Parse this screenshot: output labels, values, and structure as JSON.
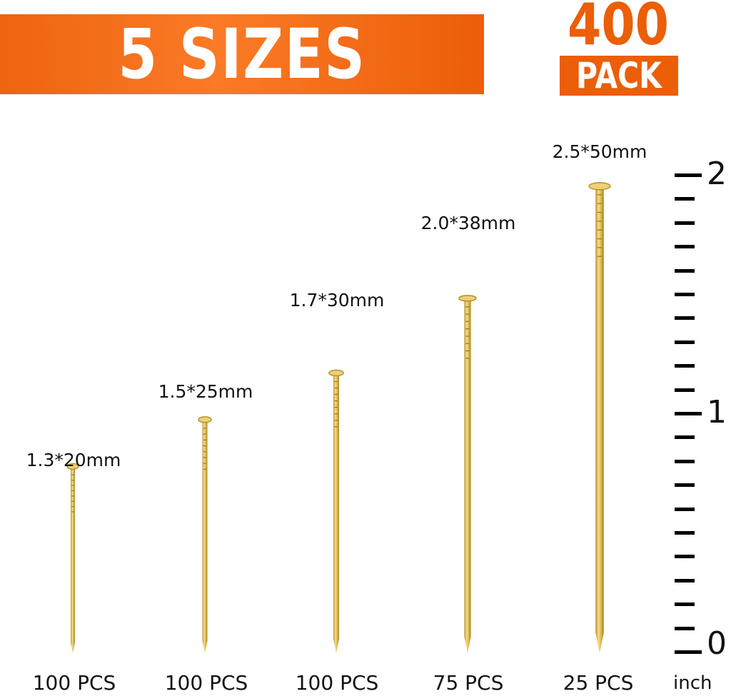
{
  "banner": {
    "title": "5 SIZES",
    "pack_count": "400",
    "pack_label": "PACK",
    "accent": "#ec5e08"
  },
  "nails": [
    {
      "size": "1.3*20mm",
      "quantity": "100 PCS",
      "diameter_mm": 1.3,
      "length_mm": 20
    },
    {
      "size": "1.5*25mm",
      "quantity": "100 PCS",
      "diameter_mm": 1.5,
      "length_mm": 25
    },
    {
      "size": "1.7*30mm",
      "quantity": "100 PCS",
      "diameter_mm": 1.7,
      "length_mm": 30
    },
    {
      "size": "2.0*38mm",
      "quantity": "75 PCS",
      "diameter_mm": 2.0,
      "length_mm": 38
    },
    {
      "size": "2.5*50mm",
      "quantity": "25 PCS",
      "diameter_mm": 2.5,
      "length_mm": 50
    }
  ],
  "ruler": {
    "labels": [
      "2",
      "1",
      "0"
    ],
    "unit": "inch",
    "nail_color": "#e3c35a"
  }
}
